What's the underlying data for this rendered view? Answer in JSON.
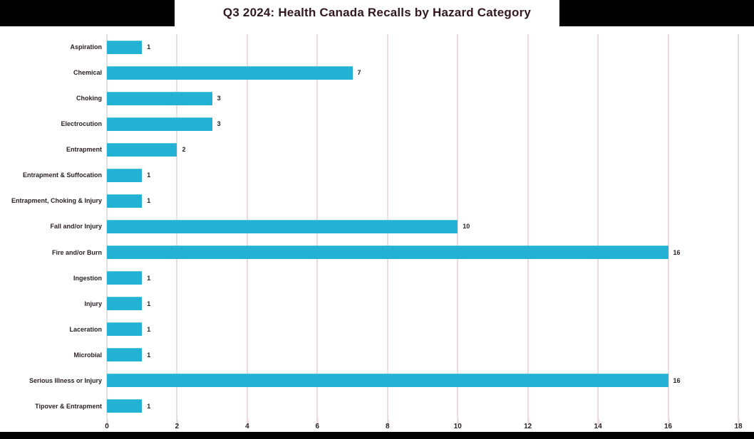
{
  "chart_data": {
    "type": "bar",
    "orientation": "horizontal",
    "title": "Q3 2024: Health Canada Recalls by Hazard Category",
    "categories": [
      "Aspiration",
      "Chemical",
      "Choking",
      "Electrocution",
      "Entrapment",
      "Entrapment & Suffocation",
      "Entrapment, Choking & Injury",
      "Fall and/or Injury",
      "Fire and/or Burn",
      "Ingestion",
      "Injury",
      "Laceration",
      "Microbial",
      "Serious Illness or Injury",
      "Tipover & Entrapment"
    ],
    "values": [
      1,
      7,
      3,
      3,
      2,
      1,
      1,
      10,
      16,
      1,
      1,
      1,
      1,
      16,
      1
    ],
    "data_labels": [
      1,
      7,
      3,
      3,
      2,
      1,
      1,
      10,
      16,
      1,
      1,
      1,
      1,
      16,
      1
    ],
    "xlabel": "",
    "ylabel": "",
    "xlim": [
      0,
      18
    ],
    "x_ticks": [
      0,
      2,
      4,
      6,
      8,
      10,
      12,
      14,
      16,
      18
    ],
    "grid": "vertical",
    "legend": "none",
    "colors": {
      "bar": "#23b2d4",
      "gridline": "#ecdbe0",
      "title_text": "#331822",
      "label_text": "#2b2026",
      "background": "#ffffff",
      "outer_mask": "#000000"
    }
  }
}
